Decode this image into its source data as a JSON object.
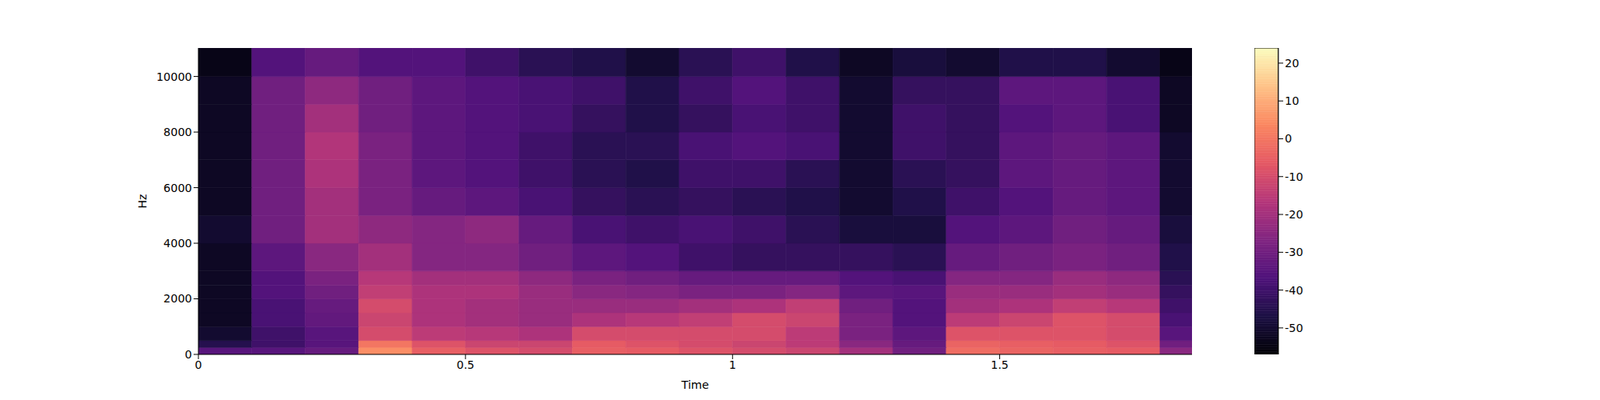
{
  "chart_data": {
    "type": "heatmap",
    "x_label": "Time",
    "y_label": "Hz",
    "xlim": [
      0,
      1.86
    ],
    "ylim": [
      0,
      11025
    ],
    "xticks": [
      0,
      0.5,
      1,
      1.5
    ],
    "yticks": [
      0,
      2000,
      4000,
      6000,
      8000,
      10000
    ],
    "time_edges": [
      0,
      0.1,
      0.2,
      0.3,
      0.4,
      0.5,
      0.6,
      0.7,
      0.8,
      0.9,
      1.0,
      1.1,
      1.2,
      1.3,
      1.4,
      1.5,
      1.6,
      1.7,
      1.8,
      1.86
    ],
    "freq_edges": [
      0,
      250,
      500,
      1000,
      1500,
      2000,
      2500,
      3000,
      4000,
      5000,
      6000,
      7000,
      8000,
      9000,
      10000,
      11025
    ],
    "cells": [
      [
        -35,
        -35,
        -32,
        5,
        -5,
        -8,
        -10,
        -5,
        -6,
        -8,
        -10,
        -12,
        -20,
        -30,
        -2,
        -4,
        -5,
        -6,
        -25
      ],
      [
        -45,
        -40,
        -35,
        0,
        -8,
        -12,
        -12,
        -6,
        -8,
        -10,
        -12,
        -15,
        -25,
        -32,
        -4,
        -5,
        -6,
        -8,
        -30
      ],
      [
        -50,
        -40,
        -35,
        -10,
        -15,
        -16,
        -18,
        -10,
        -10,
        -10,
        -10,
        -15,
        -28,
        -34,
        -8,
        -8,
        -8,
        -10,
        -35
      ],
      [
        -52,
        -38,
        -33,
        -12,
        -18,
        -20,
        -22,
        -18,
        -16,
        -14,
        -10,
        -12,
        -28,
        -36,
        -15,
        -12,
        -8,
        -10,
        -38
      ],
      [
        -52,
        -38,
        -32,
        -10,
        -18,
        -20,
        -22,
        -22,
        -22,
        -20,
        -18,
        -14,
        -30,
        -36,
        -20,
        -18,
        -14,
        -16,
        -40
      ],
      [
        -52,
        -36,
        -30,
        -14,
        -18,
        -18,
        -22,
        -25,
        -26,
        -28,
        -28,
        -26,
        -34,
        -35,
        -22,
        -22,
        -20,
        -22,
        -42
      ],
      [
        -52,
        -36,
        -28,
        -16,
        -20,
        -20,
        -24,
        -28,
        -30,
        -32,
        -32,
        -32,
        -36,
        -38,
        -26,
        -26,
        -22,
        -24,
        -44
      ],
      [
        -52,
        -34,
        -25,
        -20,
        -26,
        -26,
        -30,
        -34,
        -36,
        -40,
        -42,
        -42,
        -42,
        -44,
        -32,
        -30,
        -28,
        -30,
        -46
      ],
      [
        -50,
        -30,
        -20,
        -24,
        -26,
        -24,
        -32,
        -38,
        -40,
        -38,
        -40,
        -44,
        -48,
        -48,
        -36,
        -34,
        -30,
        -32,
        -48
      ],
      [
        -52,
        -30,
        -20,
        -28,
        -32,
        -34,
        -38,
        -42,
        -44,
        -42,
        -44,
        -46,
        -50,
        -46,
        -40,
        -36,
        -32,
        -34,
        -50
      ],
      [
        -52,
        -30,
        -18,
        -28,
        -34,
        -36,
        -40,
        -44,
        -46,
        -40,
        -40,
        -44,
        -50,
        -44,
        -42,
        -34,
        -32,
        -34,
        -50
      ],
      [
        -52,
        -30,
        -17,
        -28,
        -34,
        -36,
        -40,
        -44,
        -44,
        -38,
        -36,
        -38,
        -50,
        -40,
        -42,
        -34,
        -32,
        -34,
        -50
      ],
      [
        -52,
        -30,
        -20,
        -30,
        -34,
        -36,
        -38,
        -42,
        -46,
        -42,
        -38,
        -40,
        -50,
        -40,
        -42,
        -36,
        -34,
        -38,
        -52
      ],
      [
        -52,
        -30,
        -24,
        -30,
        -34,
        -36,
        -38,
        -40,
        -46,
        -40,
        -36,
        -40,
        -50,
        -42,
        -42,
        -34,
        -34,
        -38,
        -52
      ],
      [
        -54,
        -36,
        -32,
        -36,
        -36,
        -40,
        -44,
        -46,
        -50,
        -44,
        -40,
        -46,
        -52,
        -48,
        -50,
        -46,
        -46,
        -50,
        -54
      ]
    ],
    "colorbar_range": [
      -57,
      24
    ],
    "colorbar_ticks": [
      -50,
      -40,
      -30,
      -20,
      -10,
      0,
      10,
      20
    ]
  }
}
